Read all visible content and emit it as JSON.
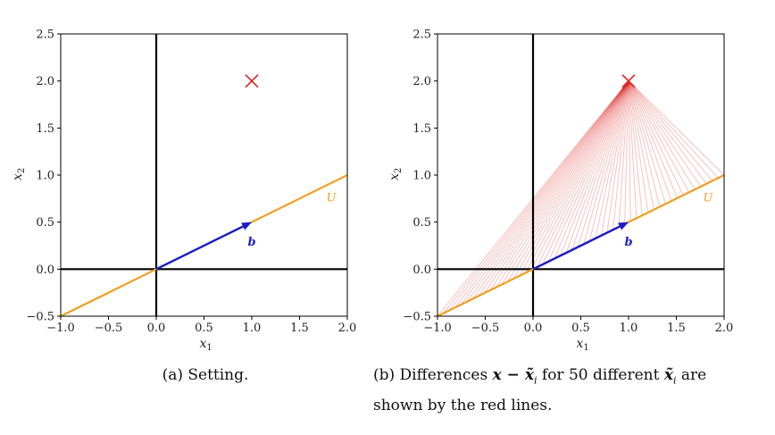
{
  "chart_data": [
    {
      "type": "line",
      "xlabel": "x1",
      "ylabel": "x2",
      "xlim": [
        -1.0,
        2.0
      ],
      "ylim": [
        -0.5,
        2.5
      ],
      "x_ticks": [
        "−1.0",
        "−0.5",
        "0.0",
        "0.5",
        "1.0",
        "1.5",
        "2.0"
      ],
      "y_ticks": [
        "−0.5",
        "0.0",
        "0.5",
        "1.0",
        "1.5",
        "2.0",
        "2.5"
      ],
      "subspace_line": {
        "label": "U",
        "x": [
          -1.0,
          2.0
        ],
        "y": [
          -0.5,
          1.0
        ],
        "color": "#f0a020"
      },
      "vector_b": {
        "label": "b",
        "from": [
          0,
          0
        ],
        "to": [
          1.0,
          0.5
        ],
        "color": "#1c1cc8"
      },
      "point_x": {
        "x": 1.0,
        "y": 2.0,
        "marker": "cross",
        "color": "#e02020"
      },
      "axes_lines": {
        "color": "#000000"
      }
    },
    {
      "type": "line",
      "xlabel": "x1",
      "ylabel": "x2",
      "xlim": [
        -1.0,
        2.0
      ],
      "ylim": [
        -0.5,
        2.5
      ],
      "x_ticks": [
        "−1.0",
        "−0.5",
        "0.0",
        "0.5",
        "1.0",
        "1.5",
        "2.0"
      ],
      "y_ticks": [
        "−0.5",
        "0.0",
        "0.5",
        "1.0",
        "1.5",
        "2.0",
        "2.5"
      ],
      "subspace_line": {
        "label": "U",
        "x": [
          -1.0,
          2.0
        ],
        "y": [
          -0.5,
          1.0
        ],
        "color": "#f0a020"
      },
      "vector_b": {
        "label": "b",
        "from": [
          0,
          0
        ],
        "to": [
          1.0,
          0.5
        ],
        "color": "#1c1cc8"
      },
      "point_x": {
        "x": 1.0,
        "y": 2.0,
        "marker": "cross",
        "color": "#e02020"
      },
      "difference_lines": {
        "count": 50,
        "from": [
          1.0,
          2.0
        ],
        "to_t_range": [
          -1.0,
          2.0
        ],
        "color": "#e02020"
      },
      "axes_lines": {
        "color": "#000000"
      }
    }
  ],
  "captions": {
    "a": "(a) Setting.",
    "b_prefix": "(b) Differences",
    "b_math1": "x − x̃",
    "b_sub1": "i",
    "b_mid": "for 50 different",
    "b_math2": "x̃",
    "b_sub2": "i",
    "b_suffix": "are",
    "b_line2": "shown by the red lines."
  }
}
